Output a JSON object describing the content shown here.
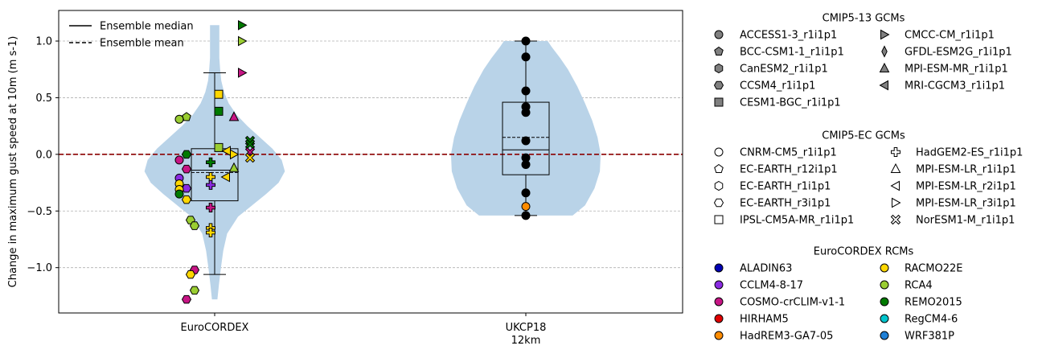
{
  "chart_data": {
    "type": "violin-boxplot-strip",
    "ylabel": "Change in maximum gust speed at 10m (m s-1)",
    "ylim": [
      -1.4,
      1.27
    ],
    "yticks": [
      -1.0,
      -0.5,
      0.0,
      0.5,
      1.0
    ],
    "ytick_labels": [
      "−1.0",
      "−0.5",
      "0.0",
      "0.5",
      "1.0"
    ],
    "grid": "horizontal dashed at y ticks",
    "reference_line": {
      "y": 0.0,
      "color": "#8b0000",
      "style": "dashed"
    },
    "categories": [
      {
        "label": "EuroCORDEX",
        "sublabel": ""
      },
      {
        "label": "UKCP18",
        "sublabel": "12km"
      }
    ],
    "violin_color": "#b9d3e8",
    "violins": [
      {
        "category": "EuroCORDEX",
        "min": -1.28,
        "max": 1.14,
        "profile": [
          [
            -1.28,
            0.035
          ],
          [
            -1.15,
            0.055
          ],
          [
            -1.0,
            0.08
          ],
          [
            -0.85,
            0.11
          ],
          [
            -0.7,
            0.16
          ],
          [
            -0.55,
            0.3
          ],
          [
            -0.45,
            0.48
          ],
          [
            -0.35,
            0.66
          ],
          [
            -0.25,
            0.82
          ],
          [
            -0.15,
            0.9
          ],
          [
            -0.05,
            0.86
          ],
          [
            0.05,
            0.74
          ],
          [
            0.15,
            0.58
          ],
          [
            0.25,
            0.42
          ],
          [
            0.35,
            0.28
          ],
          [
            0.45,
            0.18
          ],
          [
            0.55,
            0.12
          ],
          [
            0.65,
            0.085
          ],
          [
            0.75,
            0.07
          ],
          [
            0.85,
            0.06
          ],
          [
            1.0,
            0.06
          ],
          [
            1.14,
            0.06
          ]
        ]
      },
      {
        "category": "UKCP18",
        "min": -0.54,
        "max": 1.0,
        "profile": [
          [
            -0.54,
            0.6
          ],
          [
            -0.45,
            0.76
          ],
          [
            -0.3,
            0.88
          ],
          [
            -0.15,
            0.95
          ],
          [
            0.0,
            0.96
          ],
          [
            0.15,
            0.92
          ],
          [
            0.3,
            0.85
          ],
          [
            0.45,
            0.76
          ],
          [
            0.6,
            0.66
          ],
          [
            0.75,
            0.54
          ],
          [
            0.85,
            0.44
          ],
          [
            0.95,
            0.33
          ],
          [
            1.0,
            0.28
          ]
        ]
      }
    ],
    "boxes": [
      {
        "category": "EuroCORDEX",
        "whisker_low": -1.06,
        "q1": -0.41,
        "median": -0.14,
        "mean": -0.16,
        "q3": 0.05,
        "whisker_high": 0.72
      },
      {
        "category": "UKCP18",
        "whisker_low": -0.54,
        "q1": -0.18,
        "median": 0.04,
        "mean": 0.15,
        "q3": 0.46,
        "whisker_high": 1.0
      }
    ],
    "points_eurocordex": [
      {
        "gcm": "ACCESS1-3_r1i1p1",
        "rcm": "RCA4",
        "y": 0.31
      },
      {
        "gcm": "BCC-CSM1-1_r1i1p1",
        "rcm": "RCA4",
        "y": 0.33
      },
      {
        "gcm": "CMCC-CM_r1i1p1",
        "rcm": "REMO2015",
        "y": 1.14
      },
      {
        "gcm": "CMCC-CM_r1i1p1",
        "rcm": "RCA4",
        "y": 1.0
      },
      {
        "gcm": "CMCC-CM_r1i1p1",
        "rcm": "COSMO-crCLIM-v1-1",
        "y": 0.72
      },
      {
        "gcm": "CESM1-BGC_r1i1p1",
        "rcm": "RACMO22E",
        "y": 0.53
      },
      {
        "gcm": "CESM1-BGC_r1i1p1",
        "rcm": "REMO2015",
        "y": 0.38
      },
      {
        "gcm": "MPI-ESM-MR_r1i1p1",
        "rcm": "COSMO-crCLIM-v1-1",
        "y": 0.33
      },
      {
        "gcm": "CESM1-BGC_r1i1p1",
        "rcm": "RCA4",
        "y": 0.06
      },
      {
        "gcm": "CCSM4_r1i1p1",
        "rcm": "REMO2015",
        "y": 0.0
      },
      {
        "gcm": "MRI-CGCM3_r1i1p1",
        "rcm": "RACMO22E",
        "y": 0.03
      },
      {
        "gcm": "MPI-ESM-LR_r3i1p1",
        "rcm": "RACMO22E",
        "y": 0.0
      },
      {
        "gcm": "NorESM1-M_r1i1p1",
        "rcm": "REMO2015",
        "y": 0.12
      },
      {
        "gcm": "NorESM1-M_r1i1p1",
        "rcm": "REMO2015",
        "y": 0.09
      },
      {
        "gcm": "NorESM1-M_r1i1p1",
        "rcm": "COSMO-crCLIM-v1-1",
        "y": 0.02
      },
      {
        "gcm": "NorESM1-M_r1i1p1",
        "rcm": "RACMO22E",
        "y": -0.03
      },
      {
        "gcm": "ACCESS1-3_r1i1p1",
        "rcm": "COSMO-crCLIM-v1-1",
        "y": -0.05
      },
      {
        "gcm": "HadGEM2-ES_r1i1p1",
        "rcm": "REMO2015",
        "y": -0.07
      },
      {
        "gcm": "MPI-ESM-MR_r1i1p1",
        "rcm": "RCA4",
        "y": -0.12
      },
      {
        "gcm": "CCSM4_r1i1p1",
        "rcm": "COSMO-crCLIM-v1-1",
        "y": -0.13
      },
      {
        "gcm": "MPI-ESM-LR_r2i1p1",
        "rcm": "RACMO22E",
        "y": -0.2
      },
      {
        "gcm": "HadGEM2-ES_r1i1p1",
        "rcm": "RACMO22E",
        "y": -0.2
      },
      {
        "gcm": "ACCESS1-3_r1i1p1",
        "rcm": "CCLM4-8-17",
        "y": -0.21
      },
      {
        "gcm": "ACCESS1-3_r1i1p1",
        "rcm": "RACMO22E",
        "y": -0.26
      },
      {
        "gcm": "HadGEM2-ES_r1i1p1",
        "rcm": "CCLM4-8-17",
        "y": -0.27
      },
      {
        "gcm": "CCSM4_r1i1p1",
        "rcm": "CCLM4-8-17",
        "y": -0.3
      },
      {
        "gcm": "ACCESS1-3_r1i1p1",
        "rcm": "RACMO22E",
        "y": -0.31
      },
      {
        "gcm": "ACCESS1-3_r1i1p1",
        "rcm": "REMO2015",
        "y": -0.35
      },
      {
        "gcm": "CCSM4_r1i1p1",
        "rcm": "RACMO22E",
        "y": -0.4
      },
      {
        "gcm": "HadGEM2-ES_r1i1p1",
        "rcm": "COSMO-crCLIM-v1-1",
        "y": -0.47
      },
      {
        "gcm": "CCSM4_r1i1p1",
        "rcm": "RCA4",
        "y": -0.58
      },
      {
        "gcm": "CCSM4_r1i1p1",
        "rcm": "RCA4",
        "y": -0.63
      },
      {
        "gcm": "HadGEM2-ES_r1i1p1",
        "rcm": "RACMO22E",
        "y": -0.65
      },
      {
        "gcm": "HadGEM2-ES_r1i1p1",
        "rcm": "RACMO22E",
        "y": -0.69
      },
      {
        "gcm": "CCSM4_r1i1p1",
        "rcm": "COSMO-crCLIM-v1-1",
        "y": -1.02
      },
      {
        "gcm": "CCSM4_r1i1p1",
        "rcm": "RACMO22E",
        "y": -1.06
      },
      {
        "gcm": "CCSM4_r1i1p1",
        "rcm": "RCA4",
        "y": -1.2
      },
      {
        "gcm": "CCSM4_r1i1p1",
        "rcm": "COSMO-crCLIM-v1-1",
        "y": -1.28
      }
    ],
    "points_ukcp18": [
      {
        "y": 1.0,
        "color": "#000000"
      },
      {
        "y": 0.86,
        "color": "#000000"
      },
      {
        "y": 0.56,
        "color": "#000000"
      },
      {
        "y": 0.42,
        "color": "#000000"
      },
      {
        "y": 0.37,
        "color": "#000000"
      },
      {
        "y": 0.12,
        "color": "#000000"
      },
      {
        "y": -0.03,
        "color": "#000000"
      },
      {
        "y": -0.09,
        "color": "#000000"
      },
      {
        "y": -0.34,
        "color": "#000000"
      },
      {
        "y": -0.46,
        "color": "#ff8c00"
      },
      {
        "y": -0.54,
        "color": "#000000"
      }
    ],
    "legend_inside": [
      {
        "label": "Ensemble median",
        "style": "solid"
      },
      {
        "label": "Ensemble mean",
        "style": "dashed"
      }
    ]
  },
  "legend": {
    "groups": [
      {
        "title": "CMIP5-13 GCMs",
        "filled": true,
        "columns": [
          [
            {
              "label": "ACCESS1-3_r1i1p1",
              "marker": "circle"
            },
            {
              "label": "BCC-CSM1-1_r1i1p1",
              "marker": "pentagon"
            },
            {
              "label": "CanESM2_r1i1p1",
              "marker": "hexagon"
            },
            {
              "label": "CCSM4_r1i1p1",
              "marker": "hexagon2"
            },
            {
              "label": "CESM1-BGC_r1i1p1",
              "marker": "square"
            }
          ],
          [
            {
              "label": "CMCC-CM_r1i1p1",
              "marker": "tri-right"
            },
            {
              "label": "GFDL-ESM2G_r1i1p1",
              "marker": "thin-diamond"
            },
            {
              "label": "MPI-ESM-MR_r1i1p1",
              "marker": "tri-up"
            },
            {
              "label": "MRI-CGCM3_r1i1p1",
              "marker": "tri-left"
            }
          ]
        ]
      },
      {
        "title": "CMIP5-EC GCMs",
        "filled": false,
        "columns": [
          [
            {
              "label": "CNRM-CM5_r1i1p1",
              "marker": "circle"
            },
            {
              "label": "EC-EARTH_r12i1p1",
              "marker": "pentagon"
            },
            {
              "label": "EC-EARTH_r1i1p1",
              "marker": "hexagon"
            },
            {
              "label": "EC-EARTH_r3i1p1",
              "marker": "hexagon2"
            },
            {
              "label": "IPSL-CM5A-MR_r1i1p1",
              "marker": "square"
            }
          ],
          [
            {
              "label": "HadGEM2-ES_r1i1p1",
              "marker": "plus"
            },
            {
              "label": "MPI-ESM-LR_r1i1p1",
              "marker": "tri-up"
            },
            {
              "label": "MPI-ESM-LR_r2i1p1",
              "marker": "tri-left"
            },
            {
              "label": "MPI-ESM-LR_r3i1p1",
              "marker": "tri-right"
            },
            {
              "label": "NorESM1-M_r1i1p1",
              "marker": "x"
            }
          ]
        ]
      },
      {
        "title": "EuroCORDEX RCMs",
        "filled": true,
        "columns": [
          [
            {
              "label": "ALADIN63",
              "marker": "circle",
              "color": "#0000b3"
            },
            {
              "label": "CCLM4-8-17",
              "marker": "circle",
              "color": "#8a2be2"
            },
            {
              "label": "COSMO-crCLIM-v1-1",
              "marker": "circle",
              "color": "#c71585"
            },
            {
              "label": "HIRHAM5",
              "marker": "circle",
              "color": "#e00000"
            },
            {
              "label": "HadREM3-GA7-05",
              "marker": "circle",
              "color": "#ff8c00"
            }
          ],
          [
            {
              "label": "RACMO22E",
              "marker": "circle",
              "color": "#ffd700"
            },
            {
              "label": "RCA4",
              "marker": "circle",
              "color": "#9acd32"
            },
            {
              "label": "REMO2015",
              "marker": "circle",
              "color": "#007a00"
            },
            {
              "label": "RegCM4-6",
              "marker": "circle",
              "color": "#00c5cd"
            },
            {
              "label": "WRF381P",
              "marker": "circle",
              "color": "#1e7fd6"
            }
          ]
        ]
      }
    ]
  }
}
